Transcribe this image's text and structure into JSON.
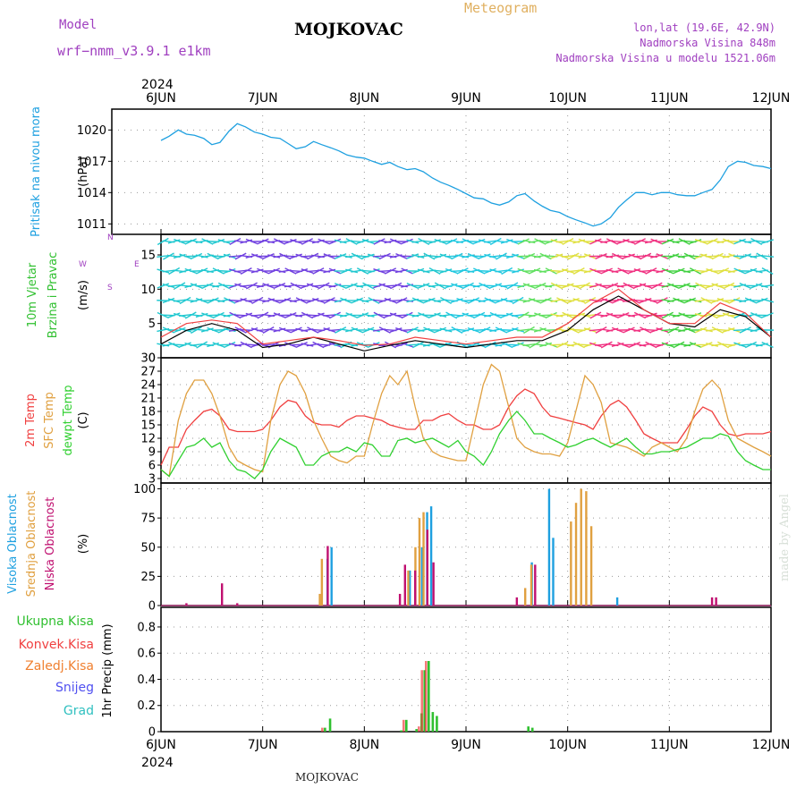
{
  "header": {
    "model_label": "Model",
    "model_name": "wrf−nmm_v3.9.1  e1km",
    "meteogram_label": "Meteogram",
    "station": "MOJKOVAC",
    "lonlat": "lon,lat (19.6E, 42.9N)",
    "elevation": "Nadmorska Visina 848m",
    "model_elevation": "Nadmorska Visina u modelu 1521.06m",
    "footer_station": "MOJKOVAC",
    "watermark": "made by Angel"
  },
  "time_axis": {
    "year": "2024",
    "ticks": [
      "6JUN",
      "7JUN",
      "8JUN",
      "9JUN",
      "10JUN",
      "11JUN",
      "12JUN"
    ]
  },
  "colors": {
    "pressure": "#1ea0e0",
    "t2m": "#f04040",
    "sfc": "#e0a040",
    "dewpt": "#30d030",
    "wind_black": "#000000",
    "wind_red": "#f04040",
    "high_cloud": "#1ea0e0",
    "mid_cloud": "#e0a040",
    "low_cloud": "#c01070",
    "precip_total": "#30c030",
    "precip_conv": "#f04040",
    "precip_frz": "#f08030",
    "precip_snow": "#5050f0",
    "precip_grad": "#30c0c0"
  },
  "chart_data": [
    {
      "type": "line",
      "panel": "pressure",
      "ylabel_lines": [
        "Pritisak na nivou mora",
        "(hPa)"
      ],
      "yticks": [
        1011,
        1014,
        1017,
        1020
      ],
      "ylim": [
        1010,
        1022
      ],
      "xlim_days": [
        0,
        6
      ],
      "series": [
        {
          "x_days": [
            0,
            0.08,
            0.17,
            0.25,
            0.33,
            0.42,
            0.5,
            0.58,
            0.67,
            0.75,
            0.83,
            0.92,
            1,
            1.08,
            1.17,
            1.25,
            1.33,
            1.42,
            1.5,
            1.58,
            1.67,
            1.75,
            1.83,
            1.92,
            2,
            2.08,
            2.17,
            2.25,
            2.33,
            2.42,
            2.5,
            2.58,
            2.67,
            2.75,
            2.83,
            2.92,
            3,
            3.08,
            3.17,
            3.25,
            3.33,
            3.42,
            3.5,
            3.58,
            3.67,
            3.75,
            3.83,
            3.92,
            4,
            4.08,
            4.17,
            4.25,
            4.33,
            4.42,
            4.5,
            4.58,
            4.67,
            4.75,
            4.83,
            4.92,
            5,
            5.08,
            5.17,
            5.25,
            5.33,
            5.42,
            5.5,
            5.58,
            5.67,
            5.75,
            5.83,
            5.92,
            6
          ],
          "values": [
            1019,
            1019.4,
            1020,
            1019.6,
            1019.5,
            1019.2,
            1018.6,
            1018.8,
            1019.9,
            1020.6,
            1020.3,
            1019.8,
            1019.6,
            1019.3,
            1019.2,
            1018.7,
            1018.2,
            1018.4,
            1018.9,
            1018.6,
            1018.3,
            1018,
            1017.6,
            1017.4,
            1017.3,
            1017,
            1016.7,
            1016.9,
            1016.5,
            1016.2,
            1016.3,
            1016,
            1015.4,
            1015,
            1014.7,
            1014.3,
            1013.9,
            1013.5,
            1013.4,
            1013,
            1012.8,
            1013.1,
            1013.7,
            1013.9,
            1013.2,
            1012.7,
            1012.3,
            1012.1,
            1011.7,
            1011.4,
            1011.1,
            1010.8,
            1011,
            1011.6,
            1012.6,
            1013.3,
            1014,
            1014,
            1013.8,
            1014,
            1014,
            1013.8,
            1013.7,
            1013.7,
            1014,
            1014.3,
            1015.2,
            1016.5,
            1017,
            1016.9,
            1016.6,
            1016.5,
            1016.3
          ]
        }
      ]
    },
    {
      "type": "line",
      "panel": "wind",
      "ylabel_lines": [
        "10m Vjetar",
        "Brzina i Pravac",
        "(m/s)"
      ],
      "compass_label": "Z / J / I / W / E / S",
      "compass_letters": {
        "up": "N",
        "down": "S",
        "left": "W",
        "right": "E"
      },
      "yticks": [
        0,
        5,
        10,
        15
      ],
      "ylim": [
        0,
        18
      ],
      "xlim_days": [
        0,
        6
      ],
      "series": [
        {
          "name": "speed",
          "color": "black",
          "x_days": [
            0,
            0.25,
            0.5,
            0.75,
            1,
            1.25,
            1.5,
            1.75,
            2,
            2.25,
            2.5,
            2.75,
            3,
            3.25,
            3.5,
            3.75,
            4,
            4.25,
            4.5,
            4.75,
            5,
            5.25,
            5.5,
            5.75,
            6
          ],
          "values": [
            2,
            4,
            5,
            4,
            1.5,
            2,
            3,
            2,
            1,
            1.8,
            2.5,
            2,
            1.5,
            2,
            2.5,
            2.5,
            4,
            7,
            9,
            7,
            5,
            4.5,
            7,
            6,
            3
          ]
        },
        {
          "name": "gust",
          "color": "red",
          "x_days": [
            0,
            0.25,
            0.5,
            0.75,
            1,
            1.25,
            1.5,
            1.75,
            2,
            2.25,
            2.5,
            2.75,
            3,
            3.25,
            3.5,
            3.75,
            4,
            4.25,
            4.5,
            4.75,
            5,
            5.25,
            5.5,
            5.75,
            6
          ],
          "values": [
            3,
            5,
            5.5,
            5,
            2,
            2.5,
            3,
            2.5,
            1.8,
            2,
            3,
            2.5,
            2,
            2.5,
            3,
            3,
            5,
            8,
            10,
            7,
            5,
            5,
            8,
            6.5,
            3
          ]
        }
      ],
      "barb_colors": [
        "#20c8d0",
        "#20c8d0",
        "#7040e0",
        "#7040e0",
        "#7040e0",
        "#20c8d0",
        "#7040e0",
        "#20c8d0",
        "#20c8e0",
        "#20c8e0",
        "#60e060",
        "#e0e040",
        "#f03080",
        "#f03080",
        "#40d040",
        "#e0e040",
        "#20c8d0"
      ]
    },
    {
      "type": "line",
      "panel": "temperature",
      "ylabel_lines": [
        "2m Temp",
        "SFC Temp",
        "dewpt Temp",
        "(C)"
      ],
      "yticks": [
        3,
        6,
        9,
        12,
        15,
        18,
        21,
        24,
        27,
        30
      ],
      "ylim": [
        2,
        30
      ],
      "xlim_days": [
        0,
        6
      ],
      "series": [
        {
          "name": "2m Temp",
          "color": "red",
          "x_days": [
            0,
            0.08,
            0.17,
            0.25,
            0.33,
            0.42,
            0.5,
            0.58,
            0.67,
            0.75,
            0.83,
            0.92,
            1,
            1.08,
            1.17,
            1.25,
            1.33,
            1.42,
            1.5,
            1.58,
            1.67,
            1.75,
            1.83,
            1.92,
            2,
            2.08,
            2.17,
            2.25,
            2.33,
            2.42,
            2.5,
            2.58,
            2.67,
            2.75,
            2.83,
            2.92,
            3,
            3.08,
            3.17,
            3.25,
            3.33,
            3.42,
            3.5,
            3.58,
            3.67,
            3.75,
            3.83,
            3.92,
            4,
            4.08,
            4.17,
            4.25,
            4.33,
            4.42,
            4.5,
            4.58,
            4.67,
            4.75,
            4.83,
            4.92,
            5,
            5.08,
            5.17,
            5.25,
            5.33,
            5.42,
            5.5,
            5.58,
            5.67,
            5.75,
            5.83,
            5.92,
            6
          ],
          "values": [
            6,
            10,
            10,
            14,
            16,
            18,
            18.5,
            17,
            14,
            13.5,
            13.5,
            13.5,
            14,
            16,
            19,
            20.5,
            20,
            17,
            15.5,
            15,
            15,
            14.5,
            16,
            17,
            17,
            16.5,
            16,
            15,
            14.5,
            14,
            14,
            16,
            16,
            17,
            17.5,
            16,
            15,
            15,
            14,
            14,
            15,
            19,
            21.5,
            23,
            22,
            19,
            17,
            16.5,
            16,
            15.5,
            15,
            14,
            17,
            19.5,
            20.5,
            19,
            16,
            13,
            12,
            11,
            11,
            11,
            14,
            17,
            19,
            18,
            15,
            13,
            12.5,
            13,
            13,
            13,
            13.5
          ]
        },
        {
          "name": "SFC Temp",
          "color": "orange",
          "x_days": [
            0,
            0.08,
            0.17,
            0.25,
            0.33,
            0.42,
            0.5,
            0.58,
            0.67,
            0.75,
            0.83,
            0.92,
            1,
            1.08,
            1.17,
            1.25,
            1.33,
            1.42,
            1.5,
            1.58,
            1.67,
            1.75,
            1.83,
            1.92,
            2,
            2.08,
            2.17,
            2.25,
            2.33,
            2.42,
            2.5,
            2.58,
            2.67,
            2.75,
            2.83,
            2.92,
            3,
            3.08,
            3.17,
            3.25,
            3.33,
            3.42,
            3.5,
            3.58,
            3.67,
            3.75,
            3.83,
            3.92,
            4,
            4.08,
            4.17,
            4.25,
            4.33,
            4.42,
            4.5,
            4.58,
            4.67,
            4.75,
            4.83,
            4.92,
            5,
            5.08,
            5.17,
            5.25,
            5.33,
            5.42,
            5.5,
            5.58,
            5.67,
            5.75,
            5.83,
            5.92,
            6
          ],
          "values": [
            5,
            3.5,
            16,
            22,
            25,
            25,
            22,
            17,
            10,
            7,
            6,
            5,
            4.5,
            16,
            24,
            27,
            26,
            22,
            16,
            12,
            8,
            7,
            6.5,
            8,
            8,
            15,
            22,
            26,
            24,
            27,
            19,
            12,
            9,
            8,
            7.5,
            7,
            7,
            15,
            24,
            28.5,
            27,
            19,
            12,
            10,
            9,
            8.5,
            8.5,
            8,
            11,
            18,
            26,
            24,
            20,
            11,
            10.5,
            10,
            9,
            8,
            10,
            11,
            10,
            9,
            12,
            18,
            23,
            25,
            23,
            16,
            12,
            11,
            10,
            9,
            8
          ]
        },
        {
          "name": "dewpt Temp",
          "color": "green",
          "x_days": [
            0,
            0.08,
            0.17,
            0.25,
            0.33,
            0.42,
            0.5,
            0.58,
            0.67,
            0.75,
            0.83,
            0.92,
            1,
            1.08,
            1.17,
            1.25,
            1.33,
            1.42,
            1.5,
            1.58,
            1.67,
            1.75,
            1.83,
            1.92,
            2,
            2.08,
            2.17,
            2.25,
            2.33,
            2.42,
            2.5,
            2.58,
            2.67,
            2.75,
            2.83,
            2.92,
            3,
            3.08,
            3.17,
            3.25,
            3.33,
            3.42,
            3.5,
            3.58,
            3.67,
            3.75,
            3.83,
            3.92,
            4,
            4.08,
            4.17,
            4.25,
            4.33,
            4.42,
            4.5,
            4.58,
            4.67,
            4.75,
            4.83,
            4.92,
            5,
            5.08,
            5.17,
            5.25,
            5.33,
            5.42,
            5.5,
            5.58,
            5.67,
            5.75,
            5.83,
            5.92,
            6
          ],
          "values": [
            5,
            3.5,
            7,
            10,
            10.5,
            12,
            10,
            11,
            7,
            5,
            4.5,
            3,
            5,
            9,
            12,
            11,
            10,
            6,
            6,
            8,
            9,
            9,
            10,
            9,
            11,
            10.5,
            8,
            8,
            11.5,
            12,
            11,
            11.5,
            12,
            11,
            10,
            11.5,
            9,
            8,
            6,
            9,
            13,
            16,
            18,
            16,
            13,
            13,
            12,
            11,
            10,
            10.5,
            11.5,
            12,
            11,
            10,
            11,
            12,
            10,
            8.5,
            8.5,
            9,
            9,
            9.5,
            10,
            11,
            12,
            12,
            13,
            12.5,
            9,
            7,
            6,
            5,
            5
          ]
        }
      ]
    },
    {
      "type": "bar",
      "panel": "clouds",
      "ylabel_lines": [
        "Visoka Oblacnost",
        "Srednja Oblacnost",
        "Niska Oblacnost",
        "(%)"
      ],
      "yticks": [
        0,
        25,
        50,
        75,
        100
      ],
      "ylim": [
        0,
        105
      ],
      "xlim_days": [
        0,
        6
      ],
      "series": [
        {
          "name": "Visoka Oblacnost",
          "color": "blue",
          "x_days": [
            1.62,
            1.66,
            2.43,
            2.55,
            2.6,
            2.64,
            3.63,
            3.8,
            3.84,
            4.47
          ],
          "values": [
            40,
            50,
            30,
            50,
            80,
            85,
            37,
            100,
            58,
            7
          ]
        },
        {
          "name": "Srednja Oblacnost",
          "color": "orange",
          "x_days": [
            1.58,
            1.6,
            2.45,
            2.52,
            2.56,
            2.6,
            3.6,
            3.66,
            4.05,
            4.1,
            4.15,
            4.2,
            4.25
          ],
          "values": [
            10,
            40,
            30,
            50,
            75,
            80,
            15,
            35,
            72,
            88,
            100,
            98,
            68
          ]
        },
        {
          "name": "Niska Oblacnost",
          "color": "magenta",
          "x_days": [
            0.25,
            0.6,
            0.75,
            1.64,
            2.35,
            2.4,
            2.5,
            2.62,
            2.68,
            3.5,
            3.68,
            5.42,
            5.46
          ],
          "values": [
            2,
            19,
            2,
            51,
            10,
            35,
            30,
            65,
            37,
            7,
            35,
            7,
            7
          ]
        }
      ]
    },
    {
      "type": "bar",
      "panel": "precipitation",
      "ylabel_lines": [
        "Ukupna Kisa",
        "Konvek.Kisa",
        "Zaledj.Kisa",
        "Snijeg",
        "Grad",
        "1hr Precip (mm)"
      ],
      "yticks": [
        0,
        0.2,
        0.4,
        0.6,
        0.8
      ],
      "ylim": [
        0,
        0.95
      ],
      "xlim_days": [
        0,
        6
      ],
      "series": [
        {
          "name": "Ukupna Kisa",
          "color": "green",
          "x_days": [
            1.6,
            1.65,
            2.35,
            2.4,
            2.5,
            2.55,
            2.58,
            2.62,
            2.66,
            2.7,
            3.6,
            3.64
          ],
          "values": [
            0.03,
            0.1,
            0.01,
            0.09,
            0.02,
            0.14,
            0.47,
            0.54,
            0.15,
            0.12,
            0.04,
            0.03
          ]
        },
        {
          "name": "Konvek.Kisa",
          "color": "red",
          "x_days": [
            1.6,
            2.4,
            2.55,
            2.58,
            2.62
          ],
          "values": [
            0.03,
            0.09,
            0.04,
            0.47,
            0.54
          ]
        }
      ]
    }
  ]
}
